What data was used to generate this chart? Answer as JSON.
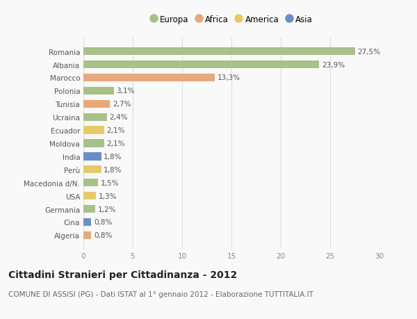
{
  "categories": [
    "Romania",
    "Albania",
    "Marocco",
    "Polonia",
    "Tunisia",
    "Ucraina",
    "Ecuador",
    "Moldova",
    "India",
    "Perù",
    "Macedonia d/N.",
    "USA",
    "Germania",
    "Cina",
    "Algeria"
  ],
  "values": [
    27.5,
    23.9,
    13.3,
    3.1,
    2.7,
    2.4,
    2.1,
    2.1,
    1.8,
    1.8,
    1.5,
    1.3,
    1.2,
    0.8,
    0.8
  ],
  "labels": [
    "27,5%",
    "23,9%",
    "13,3%",
    "3,1%",
    "2,7%",
    "2,4%",
    "2,1%",
    "2,1%",
    "1,8%",
    "1,8%",
    "1,5%",
    "1,3%",
    "1,2%",
    "0,8%",
    "0,8%"
  ],
  "continents": [
    "Europa",
    "Europa",
    "Africa",
    "Europa",
    "Africa",
    "Europa",
    "America",
    "Europa",
    "Asia",
    "America",
    "Europa",
    "America",
    "Europa",
    "Asia",
    "Africa"
  ],
  "colors": {
    "Europa": "#a8c08a",
    "Africa": "#e8a87c",
    "America": "#e8c96a",
    "Asia": "#6a8fc8"
  },
  "legend_order": [
    "Europa",
    "Africa",
    "America",
    "Asia"
  ],
  "xlim": [
    0,
    30
  ],
  "xticks": [
    0,
    5,
    10,
    15,
    20,
    25,
    30
  ],
  "title": "Cittadini Stranieri per Cittadinanza - 2012",
  "subtitle": "COMUNE DI ASSISI (PG) - Dati ISTAT al 1° gennaio 2012 - Elaborazione TUTTITALIA.IT",
  "bg_color": "#f9f9f9",
  "grid_color": "#dddddd",
  "bar_height": 0.6,
  "title_fontsize": 10,
  "subtitle_fontsize": 7.5,
  "label_fontsize": 7.5,
  "tick_fontsize": 7.5,
  "legend_fontsize": 8.5
}
